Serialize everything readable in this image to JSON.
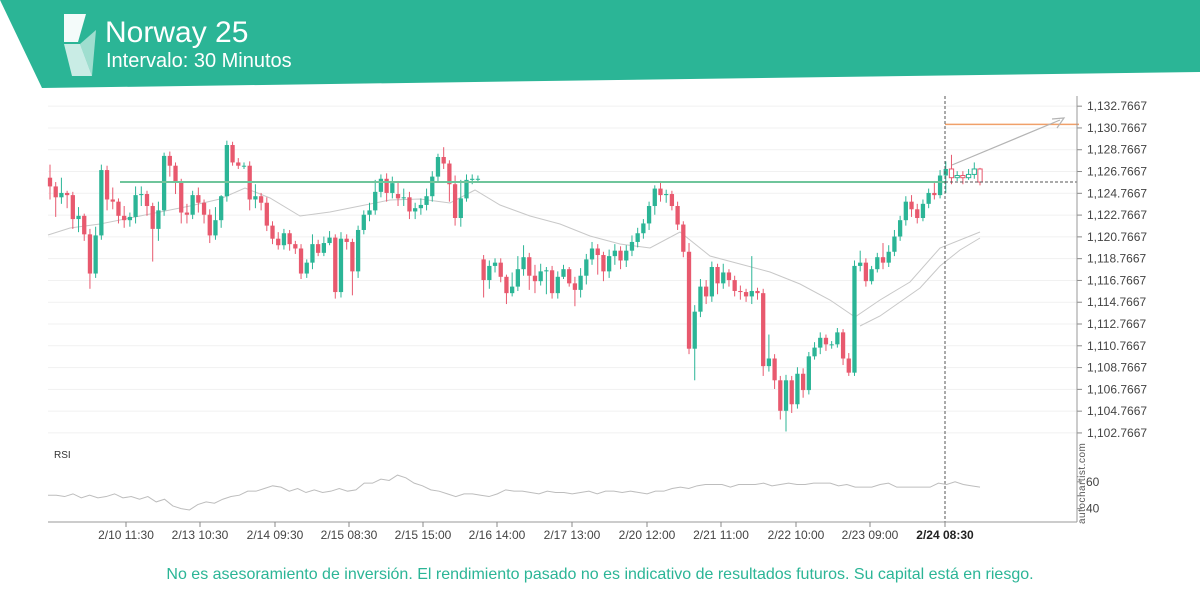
{
  "header": {
    "title": "Norway 25",
    "subtitle": "Intervalo: 30 Minutos",
    "brand_color": "#2bb596",
    "logo": "autochartist-logo"
  },
  "watermark": "autochartist.com",
  "disclaimer": "No es asesoramiento de inversión. El rendimiento pasado no es indicativo de resultados futuros. Su capital está en riesgo.",
  "chart_data": {
    "type": "candlestick",
    "y_ticks": [
      "1,132.7667",
      "1,130.7667",
      "1,128.7667",
      "1,126.7667",
      "1,124.7667",
      "1,122.7667",
      "1,120.7667",
      "1,118.7667",
      "1,116.7667",
      "1,114.7667",
      "1,112.7667",
      "1,110.7667",
      "1,108.7667",
      "1,106.7667",
      "1,104.7667",
      "1,102.7667"
    ],
    "ylim": [
      1101.2,
      1133.7
    ],
    "x_ticks": [
      "2/10 11:30",
      "2/13 10:30",
      "2/14 09:30",
      "2/15 08:30",
      "2/15 15:00",
      "2/16 14:00",
      "2/17 13:00",
      "2/20 12:00",
      "2/21 11:00",
      "2/22 10:00",
      "2/23 09:00",
      "2/24 08:30"
    ],
    "highlight_tick": "2/24 08:30",
    "colors": {
      "up": "#2bb596",
      "down": "#e8596e",
      "support": "#6fc59b",
      "target": "#f0a06a",
      "ma": "#c8c8c8",
      "projection": "#b4b4b4"
    },
    "support_level": 1125.8,
    "target_level": 1131.1,
    "last_price": 1125.8,
    "candles": [
      [
        1126.2,
        1125.4,
        1127.4,
        1124.2
      ],
      [
        1125.4,
        1124.4,
        1125.8,
        1122.6
      ],
      [
        1124.4,
        1124.8,
        1126.2,
        1123.8
      ],
      [
        1124.8,
        1124.6,
        1125.0,
        1123.4
      ],
      [
        1124.6,
        1122.4,
        1124.9,
        1121.5
      ],
      [
        1122.4,
        1122.7,
        1123.5,
        1121.2
      ],
      [
        1122.7,
        1121.0,
        1122.9,
        1120.4
      ],
      [
        1121.0,
        1117.4,
        1121.5,
        1116.0
      ],
      [
        1117.4,
        1120.9,
        1121.7,
        1117.0
      ],
      [
        1120.9,
        1126.9,
        1127.4,
        1120.5
      ],
      [
        1126.9,
        1124.2,
        1127.3,
        1123.2
      ],
      [
        1124.2,
        1124.0,
        1125.3,
        1123.3
      ],
      [
        1124.0,
        1122.7,
        1124.3,
        1122.0
      ],
      [
        1122.7,
        1122.3,
        1123.6,
        1121.6
      ],
      [
        1122.3,
        1122.6,
        1123.0,
        1121.7
      ],
      [
        1122.6,
        1124.6,
        1125.4,
        1122.0
      ],
      [
        1124.6,
        1124.7,
        1125.4,
        1123.6
      ],
      [
        1124.7,
        1123.6,
        1125.0,
        1122.7
      ],
      [
        1123.6,
        1121.5,
        1123.9,
        1118.5
      ],
      [
        1121.5,
        1123.2,
        1124.0,
        1120.4
      ],
      [
        1123.2,
        1128.2,
        1128.5,
        1122.7
      ],
      [
        1128.2,
        1127.3,
        1128.6,
        1126.3
      ],
      [
        1127.3,
        1125.8,
        1127.6,
        1124.7
      ],
      [
        1125.8,
        1123.0,
        1126.1,
        1122.0
      ],
      [
        1123.0,
        1122.8,
        1123.8,
        1122.0
      ],
      [
        1122.8,
        1124.6,
        1125.0,
        1122.4
      ],
      [
        1124.6,
        1123.9,
        1125.3,
        1123.0
      ],
      [
        1123.9,
        1122.8,
        1124.2,
        1122.0
      ],
      [
        1122.8,
        1120.9,
        1123.3,
        1120.2
      ],
      [
        1120.9,
        1122.3,
        1123.5,
        1120.5
      ],
      [
        1122.3,
        1124.5,
        1124.6,
        1121.6
      ],
      [
        1124.5,
        1129.2,
        1129.6,
        1124.0
      ],
      [
        1129.2,
        1127.6,
        1129.5,
        1127.3
      ],
      [
        1127.6,
        1127.3,
        1128.0,
        1127.0
      ],
      [
        1127.3,
        1127.3,
        1127.6,
        1127.0
      ],
      [
        1127.3,
        1124.2,
        1127.7,
        1123.2
      ],
      [
        1124.2,
        1124.5,
        1125.6,
        1123.4
      ],
      [
        1124.5,
        1123.9,
        1124.8,
        1123.2
      ],
      [
        1123.9,
        1121.8,
        1124.4,
        1121.3
      ],
      [
        1121.8,
        1120.6,
        1122.2,
        1120.1
      ],
      [
        1120.6,
        1120.0,
        1121.2,
        1119.6
      ],
      [
        1120.0,
        1121.1,
        1121.5,
        1119.6
      ],
      [
        1121.1,
        1120.1,
        1121.4,
        1119.5
      ],
      [
        1120.1,
        1119.7,
        1120.4,
        1119.2
      ],
      [
        1119.7,
        1117.4,
        1120.1,
        1116.9
      ],
      [
        1117.4,
        1118.4,
        1118.7,
        1117.0
      ],
      [
        1118.4,
        1120.1,
        1121.0,
        1117.8
      ],
      [
        1120.1,
        1119.3,
        1120.5,
        1119.0
      ],
      [
        1119.3,
        1120.2,
        1120.8,
        1119.0
      ],
      [
        1120.2,
        1120.7,
        1121.3,
        1120.0
      ],
      [
        1120.7,
        1115.7,
        1121.0,
        1115.1
      ],
      [
        1115.7,
        1120.6,
        1121.2,
        1115.2
      ],
      [
        1120.6,
        1120.3,
        1121.0,
        1119.6
      ],
      [
        1120.3,
        1117.6,
        1120.6,
        1115.4
      ],
      [
        1117.6,
        1121.4,
        1121.8,
        1117.0
      ],
      [
        1121.4,
        1122.8,
        1123.2,
        1121.0
      ],
      [
        1122.8,
        1123.2,
        1123.9,
        1122.2
      ],
      [
        1123.2,
        1124.9,
        1126.0,
        1122.8
      ],
      [
        1124.9,
        1126.1,
        1126.5,
        1124.4
      ],
      [
        1126.1,
        1124.8,
        1126.6,
        1124.0
      ],
      [
        1124.8,
        1125.7,
        1126.3,
        1124.3
      ],
      [
        1124.7,
        1124.3,
        1125.9,
        1123.6
      ],
      [
        1124.3,
        1124.4,
        1125.2,
        1123.6
      ],
      [
        1124.4,
        1123.1,
        1124.9,
        1122.4
      ],
      [
        1123.1,
        1123.4,
        1123.9,
        1122.4
      ],
      [
        1123.4,
        1123.7,
        1124.3,
        1122.8
      ],
      [
        1123.7,
        1124.5,
        1125.2,
        1123.2
      ],
      [
        1124.5,
        1126.3,
        1126.8,
        1124.0
      ],
      [
        1126.3,
        1128.1,
        1128.4,
        1125.8
      ],
      [
        1128.1,
        1127.5,
        1129.0,
        1127.0
      ],
      [
        1127.5,
        1125.6,
        1127.8,
        1124.0
      ],
      [
        1125.6,
        1122.5,
        1126.4,
        1121.8
      ],
      [
        1122.5,
        1124.3,
        1126.0,
        1121.7
      ],
      [
        1124.3,
        1126.0,
        1126.5,
        1124.0
      ],
      [
        1126.0,
        1126.1,
        1126.5,
        1125.6
      ],
      [
        1126.1,
        1126.1,
        1126.4,
        1125.8
      ],
      [
        1118.7,
        1116.8,
        1119.1,
        1115.2
      ],
      [
        1116.8,
        1118.1,
        1118.6,
        1116.0
      ],
      [
        1118.1,
        1118.4,
        1118.8,
        1117.5
      ],
      [
        1118.4,
        1117.1,
        1118.8,
        1116.6
      ],
      [
        1117.1,
        1115.6,
        1117.3,
        1114.6
      ],
      [
        1115.6,
        1116.2,
        1117.5,
        1115.3
      ],
      [
        1116.2,
        1117.8,
        1119.0,
        1115.8
      ],
      [
        1117.8,
        1118.9,
        1120.0,
        1117.2
      ],
      [
        1118.9,
        1117.2,
        1119.3,
        1115.9
      ],
      [
        1117.2,
        1116.7,
        1118.2,
        1115.6
      ],
      [
        1116.7,
        1117.6,
        1118.3,
        1116.3
      ],
      [
        1117.6,
        1117.7,
        1118.0,
        1115.5
      ],
      [
        1117.7,
        1115.6,
        1118.1,
        1115.1
      ],
      [
        1115.6,
        1117.1,
        1117.6,
        1115.1
      ],
      [
        1117.1,
        1117.8,
        1118.2,
        1116.9
      ],
      [
        1117.8,
        1116.5,
        1118.0,
        1116.2
      ],
      [
        1116.5,
        1115.9,
        1117.1,
        1114.4
      ],
      [
        1115.9,
        1117.2,
        1117.9,
        1115.2
      ],
      [
        1117.2,
        1118.7,
        1119.2,
        1116.4
      ],
      [
        1118.7,
        1119.7,
        1120.3,
        1118.2
      ],
      [
        1119.7,
        1119.1,
        1120.1,
        1117.3
      ],
      [
        1119.1,
        1117.6,
        1119.4,
        1116.7
      ],
      [
        1117.6,
        1119.0,
        1119.6,
        1117.0
      ],
      [
        1119.0,
        1119.5,
        1120.1,
        1118.2
      ],
      [
        1119.5,
        1118.6,
        1119.9,
        1117.8
      ],
      [
        1118.6,
        1119.5,
        1120.0,
        1118.0
      ],
      [
        1119.5,
        1120.3,
        1120.9,
        1119.0
      ],
      [
        1120.3,
        1121.1,
        1121.6,
        1119.8
      ],
      [
        1121.1,
        1122.0,
        1122.4,
        1120.6
      ],
      [
        1122.0,
        1123.6,
        1124.0,
        1121.4
      ],
      [
        1123.6,
        1125.2,
        1125.5,
        1122.8
      ],
      [
        1125.2,
        1124.6,
        1125.9,
        1124.0
      ],
      [
        1124.6,
        1124.7,
        1125.1,
        1123.9
      ],
      [
        1124.7,
        1123.6,
        1125.0,
        1123.2
      ],
      [
        1123.6,
        1121.9,
        1124.0,
        1121.4
      ],
      [
        1121.9,
        1119.4,
        1122.2,
        1118.9
      ],
      [
        1119.4,
        1110.5,
        1120.2,
        1110.0
      ],
      [
        1110.5,
        1113.9,
        1114.5,
        1107.6
      ],
      [
        1113.9,
        1116.2,
        1116.9,
        1113.4
      ],
      [
        1116.2,
        1115.3,
        1116.8,
        1114.6
      ],
      [
        1115.3,
        1118.0,
        1118.5,
        1114.8
      ],
      [
        1118.0,
        1116.5,
        1118.3,
        1115.5
      ],
      [
        1116.5,
        1117.5,
        1118.3,
        1116.0
      ],
      [
        1117.5,
        1116.8,
        1117.8,
        1116.2
      ],
      [
        1116.8,
        1115.8,
        1117.2,
        1115.3
      ],
      [
        1115.8,
        1115.7,
        1116.3,
        1115.0
      ],
      [
        1115.7,
        1115.3,
        1116.0,
        1114.8
      ],
      [
        1115.3,
        1115.8,
        1119.0,
        1114.6
      ],
      [
        1115.8,
        1115.6,
        1116.1,
        1115.0
      ],
      [
        1115.6,
        1108.9,
        1116.0,
        1108.0
      ],
      [
        1108.9,
        1109.6,
        1111.8,
        1108.4
      ],
      [
        1109.6,
        1107.6,
        1110.0,
        1106.8
      ],
      [
        1107.6,
        1104.8,
        1108.0,
        1104.0
      ],
      [
        1104.8,
        1107.6,
        1108.1,
        1102.9
      ],
      [
        1107.6,
        1105.4,
        1108.0,
        1104.6
      ],
      [
        1105.4,
        1108.2,
        1108.8,
        1105.0
      ],
      [
        1108.2,
        1106.7,
        1108.7,
        1106.0
      ],
      [
        1106.7,
        1109.8,
        1110.2,
        1106.3
      ],
      [
        1109.8,
        1110.6,
        1111.1,
        1109.5
      ],
      [
        1110.6,
        1111.5,
        1112.0,
        1110.0
      ],
      [
        1111.5,
        1110.9,
        1111.8,
        1110.3
      ],
      [
        1110.9,
        1110.9,
        1111.2,
        1110.5
      ],
      [
        1110.9,
        1112.0,
        1112.4,
        1110.6
      ],
      [
        1112.0,
        1109.6,
        1112.3,
        1109.0
      ],
      [
        1109.6,
        1108.3,
        1110.1,
        1108.0
      ],
      [
        1108.3,
        1118.1,
        1118.6,
        1108.0
      ],
      [
        1118.1,
        1118.4,
        1119.5,
        1117.6
      ],
      [
        1118.4,
        1116.7,
        1118.8,
        1116.2
      ],
      [
        1116.7,
        1117.8,
        1118.1,
        1116.4
      ],
      [
        1117.8,
        1118.9,
        1119.3,
        1117.5
      ],
      [
        1118.9,
        1118.4,
        1120.2,
        1117.8
      ],
      [
        1118.4,
        1119.4,
        1120.0,
        1118.0
      ],
      [
        1119.4,
        1120.8,
        1121.4,
        1119.0
      ],
      [
        1120.8,
        1122.3,
        1122.7,
        1120.4
      ],
      [
        1122.3,
        1124.0,
        1124.5,
        1121.8
      ],
      [
        1124.0,
        1123.3,
        1124.6,
        1122.6
      ],
      [
        1123.3,
        1122.5,
        1123.8,
        1122.0
      ],
      [
        1122.5,
        1123.8,
        1124.2,
        1122.2
      ],
      [
        1123.8,
        1124.8,
        1125.2,
        1123.4
      ],
      [
        1124.8,
        1124.6,
        1125.9,
        1124.2
      ],
      [
        1124.6,
        1126.4,
        1126.9,
        1124.3
      ],
      [
        1126.4,
        1127.0,
        1127.7,
        1124.8
      ],
      [
        1127.0,
        1126.2,
        1128.3,
        1125.6
      ],
      [
        1126.2,
        1126.4,
        1126.8,
        1125.9
      ],
      [
        1126.4,
        1126.2,
        1126.8,
        1125.6
      ],
      [
        1126.2,
        1126.5,
        1127.0,
        1126.0
      ],
      [
        1126.5,
        1127.0,
        1127.6,
        1126.1
      ],
      [
        1127.0,
        1125.8,
        1127.1,
        1125.5
      ]
    ],
    "moving_averages": [
      [
        [
          48,
          235
        ],
        [
          70,
          228
        ],
        [
          100,
          224
        ],
        [
          130,
          218
        ],
        [
          160,
          212
        ],
        [
          190,
          206
        ],
        [
          220,
          199
        ],
        [
          245,
          188
        ],
        [
          270,
          198
        ],
        [
          300,
          216
        ],
        [
          330,
          212
        ],
        [
          360,
          206
        ],
        [
          390,
          200
        ],
        [
          420,
          199
        ],
        [
          450,
          203
        ],
        [
          475,
          190
        ],
        [
          500,
          205
        ],
        [
          530,
          216
        ],
        [
          560,
          224
        ],
        [
          590,
          236
        ],
        [
          620,
          244
        ],
        [
          650,
          248
        ],
        [
          680,
          232
        ],
        [
          710,
          256
        ],
        [
          740,
          264
        ],
        [
          770,
          272
        ],
        [
          800,
          284
        ],
        [
          830,
          300
        ],
        [
          855,
          317
        ],
        [
          880,
          300
        ],
        [
          910,
          282
        ],
        [
          940,
          248
        ],
        [
          980,
          232
        ]
      ],
      [
        [
          860,
          326
        ],
        [
          880,
          316
        ],
        [
          900,
          302
        ],
        [
          920,
          288
        ],
        [
          940,
          266
        ],
        [
          960,
          250
        ],
        [
          980,
          238
        ]
      ]
    ],
    "rsi": {
      "label": "RSI",
      "ticks": [
        "60",
        "40"
      ],
      "ylim": [
        30,
        80
      ],
      "values": [
        50,
        50,
        49,
        51,
        48,
        50,
        48,
        49,
        51,
        48,
        49,
        47,
        49,
        45,
        47,
        42,
        40,
        39,
        43,
        45,
        44,
        47,
        49,
        50,
        53,
        53,
        55,
        57,
        56,
        53,
        55,
        52,
        54,
        52,
        53,
        55,
        53,
        54,
        59,
        59,
        62,
        61,
        65,
        63,
        59,
        57,
        54,
        53,
        51,
        49,
        51,
        51,
        50,
        49,
        51,
        54,
        53,
        53,
        52,
        51,
        53,
        52,
        52,
        51,
        52,
        53,
        51,
        53,
        53,
        52,
        53,
        52,
        51,
        53,
        53,
        55,
        56,
        55,
        57,
        58,
        58,
        58,
        56,
        58,
        58,
        58,
        59,
        57,
        58,
        59,
        58,
        58,
        59,
        59,
        59,
        57,
        58,
        56,
        56,
        56,
        58,
        59,
        56,
        56,
        56,
        56,
        56,
        59,
        58,
        60,
        58,
        57,
        56
      ]
    }
  }
}
